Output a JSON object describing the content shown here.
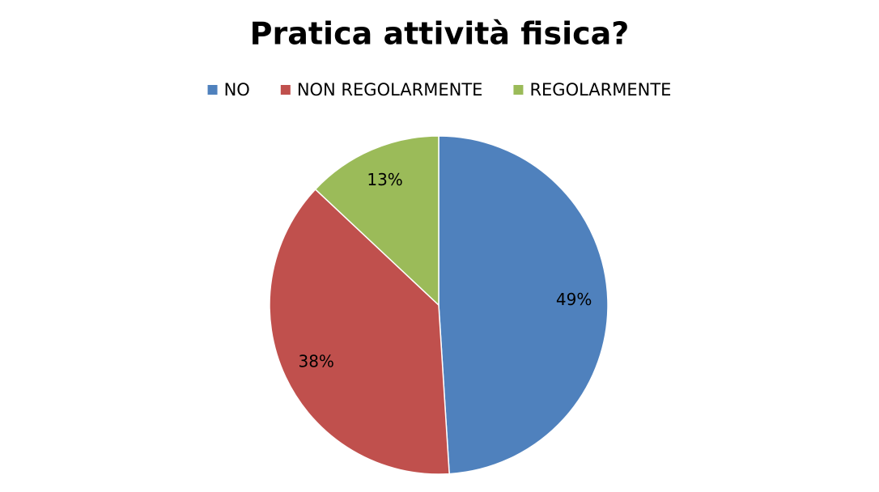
{
  "chart_data": {
    "type": "pie",
    "title": "Pratica attività fisica?",
    "categories": [
      "NO",
      "NON REGOLARMENTE",
      "REGOLARMENTE"
    ],
    "values": [
      49,
      38,
      13
    ],
    "value_labels": [
      "49%",
      "38%",
      "13%"
    ],
    "colors": [
      "#4f81bd",
      "#c0504d",
      "#9bbb59"
    ],
    "legend": "top"
  }
}
